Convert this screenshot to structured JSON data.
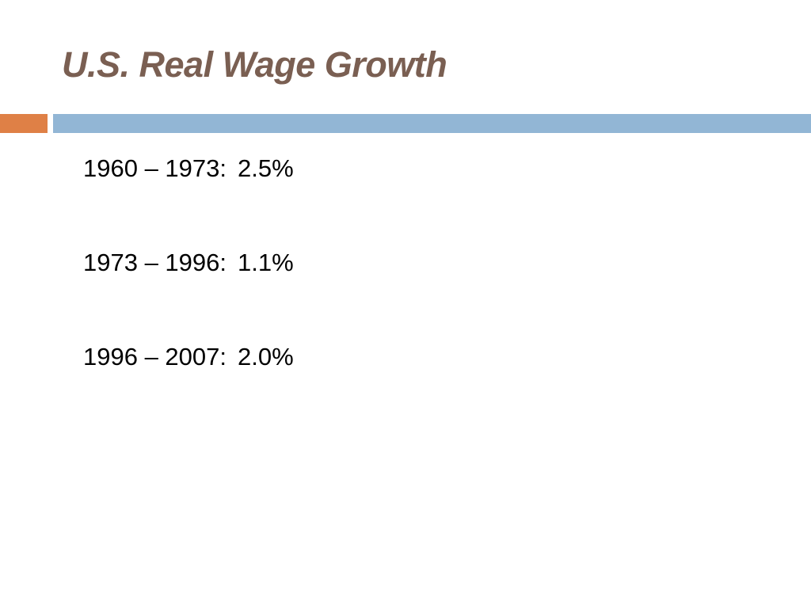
{
  "slide": {
    "title": "U.S. Real Wage Growth",
    "accent_colors": {
      "orange": "#df8046",
      "blue": "#92b6d5",
      "title": "#7a5f52"
    },
    "items": [
      {
        "period": "1960 – 1973:",
        "value": "2.5%"
      },
      {
        "period": "1973 – 1996:",
        "value": "1.1%"
      },
      {
        "period": "1996 – 2007:",
        "value": "2.0%"
      }
    ]
  }
}
